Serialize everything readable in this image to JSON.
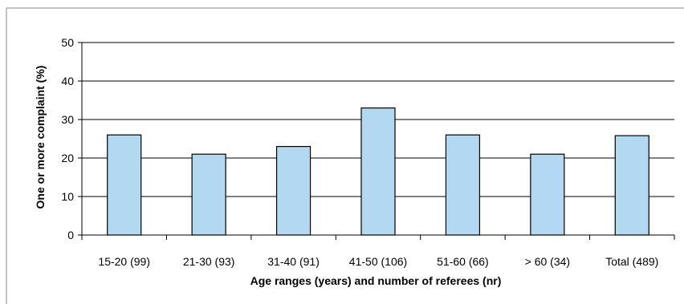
{
  "chart_data": {
    "type": "bar",
    "title": "",
    "xlabel": "Age ranges (years) and number of referees (nr)",
    "ylabel": "One or more complaint (%)",
    "categories": [
      "15-20 (99)",
      "21-30 (93)",
      "31-40 (91)",
      "41-50 (106)",
      "51-60 (66)",
      "> 60 (34)",
      "Total (489)"
    ],
    "values": [
      26,
      21,
      23,
      33,
      26,
      21,
      25.8
    ],
    "ylim": [
      0,
      50
    ],
    "yticks": [
      0,
      10,
      20,
      30,
      40,
      50
    ],
    "grid": true,
    "legend": "none",
    "bar_color": "#b3d9f2",
    "bar_edge_color": "#000000",
    "grid_color": "#000000"
  }
}
